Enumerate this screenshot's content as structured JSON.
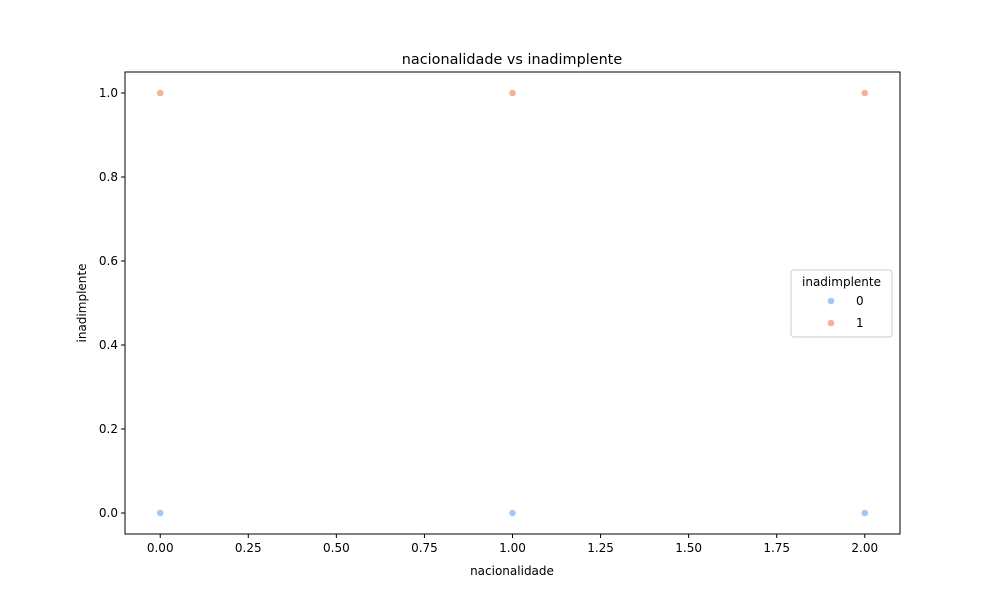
{
  "chart_data": {
    "type": "scatter",
    "title": "nacionalidade vs inadimplente",
    "xlabel": "nacionalidade",
    "ylabel": "inadimplente",
    "xlim": [
      -0.1,
      2.1
    ],
    "ylim": [
      -0.05,
      1.05
    ],
    "xticks": [
      "0.00",
      "0.25",
      "0.50",
      "0.75",
      "1.00",
      "1.25",
      "1.50",
      "1.75",
      "2.00"
    ],
    "yticks": [
      "0.0",
      "0.2",
      "0.4",
      "0.6",
      "0.8",
      "1.0"
    ],
    "grid": false,
    "legend": {
      "title": "inadimplente",
      "placement": "center-right"
    },
    "series": [
      {
        "name": "0",
        "color": "#a1c9f4",
        "points": [
          [
            0,
            0
          ],
          [
            1,
            0
          ],
          [
            2,
            0
          ]
        ]
      },
      {
        "name": "1",
        "color": "#f4b09b",
        "points": [
          [
            0,
            1
          ],
          [
            1,
            1
          ],
          [
            2,
            1
          ]
        ]
      }
    ]
  }
}
